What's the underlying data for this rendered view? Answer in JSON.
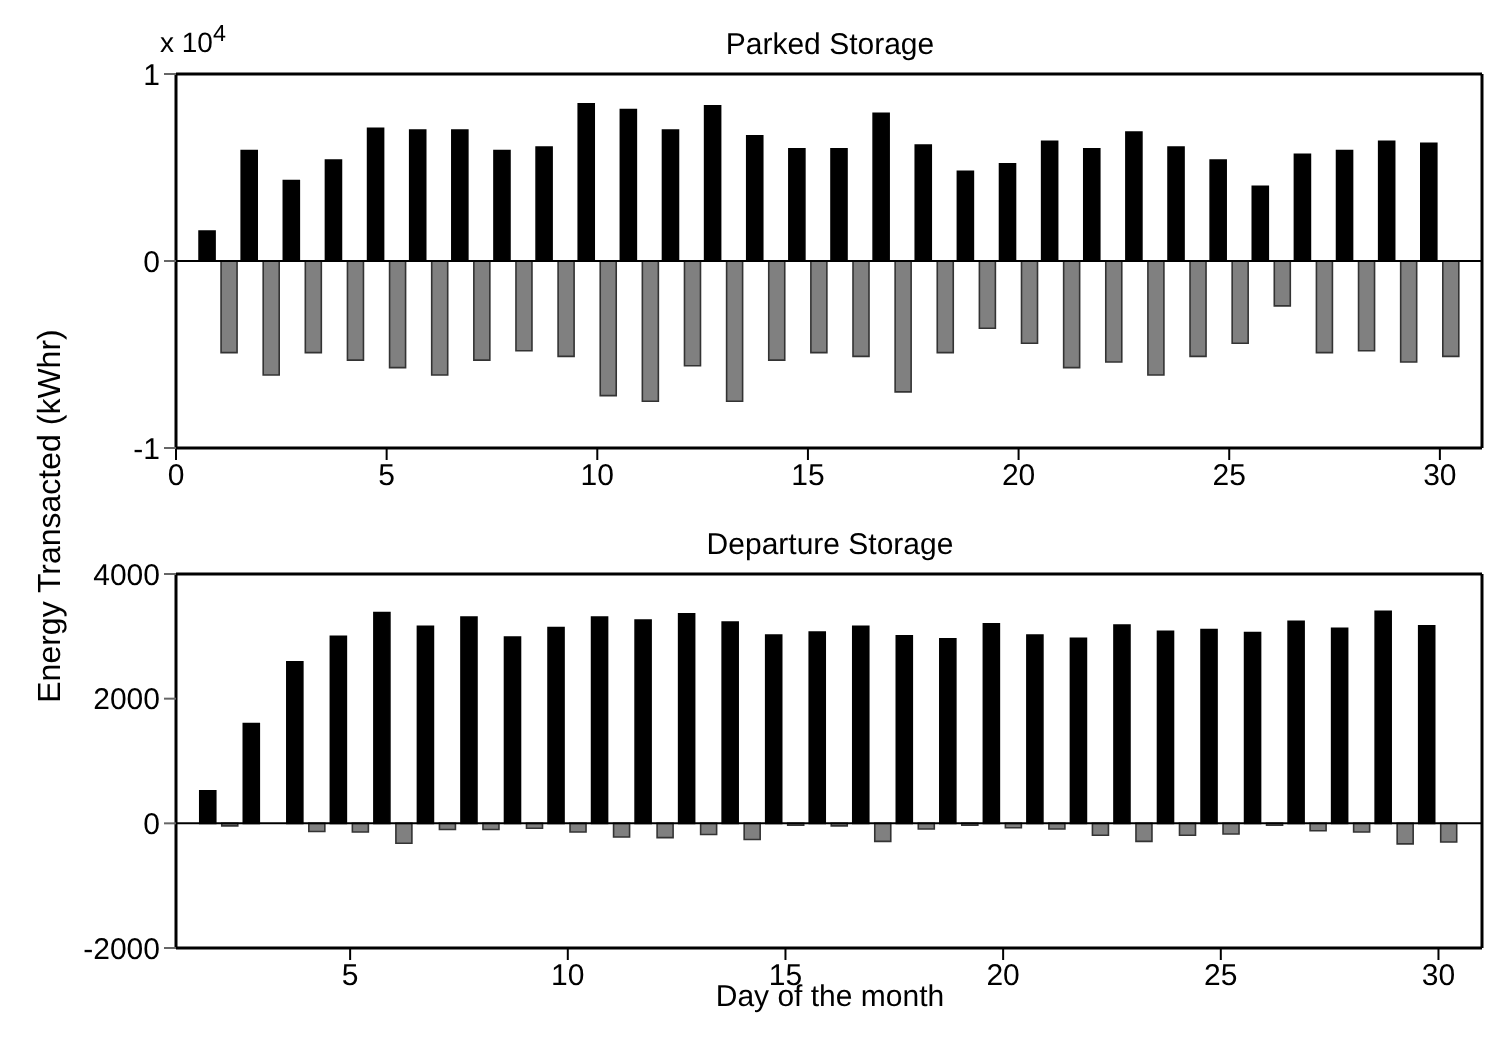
{
  "chart_data": [
    {
      "type": "bar",
      "title": "Parked Storage",
      "ylabel": "Energy Transacted (kWhr)",
      "annotations": [
        "x 10$^{4}$"
      ],
      "x": [
        1,
        2,
        3,
        4,
        5,
        6,
        7,
        8,
        9,
        10,
        11,
        12,
        13,
        14,
        15,
        16,
        17,
        18,
        19,
        20,
        21,
        22,
        23,
        24,
        25,
        26,
        27,
        28,
        29,
        30
      ],
      "series": [
        {
          "color": "#000000",
          "values": [
            0.16,
            0.59,
            0.43,
            0.54,
            0.71,
            0.7,
            0.7,
            0.59,
            0.61,
            0.84,
            0.81,
            0.7,
            0.83,
            0.67,
            0.6,
            0.6,
            0.79,
            0.62,
            0.48,
            0.52,
            0.64,
            0.6,
            0.69,
            0.61,
            0.54,
            0.4,
            0.57,
            0.59,
            0.64,
            0.63
          ]
        },
        {
          "color": "#808080",
          "values": [
            -0.49,
            -0.61,
            -0.49,
            -0.53,
            -0.57,
            -0.61,
            -0.53,
            -0.48,
            -0.51,
            -0.72,
            -0.75,
            -0.56,
            -0.75,
            -0.53,
            -0.49,
            -0.51,
            -0.7,
            -0.49,
            -0.36,
            -0.44,
            -0.57,
            -0.54,
            -0.61,
            -0.51,
            -0.44,
            -0.24,
            -0.49,
            -0.48,
            -0.54,
            -0.51
          ]
        }
      ],
      "xlim": [
        0,
        31
      ],
      "xticks": [
        0,
        5,
        10,
        15,
        20,
        25,
        30
      ],
      "ylim": [
        -1,
        1
      ],
      "yticks": [
        -1,
        0,
        1
      ]
    },
    {
      "type": "bar",
      "title": "Departure Storage",
      "xlabel": "Day of the month",
      "x": [
        2,
        3,
        4,
        5,
        6,
        7,
        8,
        9,
        10,
        11,
        12,
        13,
        14,
        15,
        16,
        17,
        18,
        19,
        20,
        21,
        22,
        23,
        24,
        25,
        26,
        27,
        28,
        29,
        30
      ],
      "series": [
        {
          "color": "#000000",
          "values": [
            520,
            1600,
            2590,
            3000,
            3380,
            3160,
            3310,
            2990,
            3140,
            3310,
            3260,
            3360,
            3230,
            3020,
            3070,
            3160,
            3010,
            2960,
            3200,
            3020,
            2970,
            3180,
            3080,
            3110,
            3060,
            3240,
            3130,
            3400,
            3170
          ]
        },
        {
          "color": "#808080",
          "values": [
            -40,
            null,
            -130,
            -140,
            -320,
            -100,
            -100,
            -80,
            -140,
            -220,
            -230,
            -180,
            -260,
            -30,
            -40,
            -290,
            -90,
            -30,
            -70,
            -90,
            -190,
            -290,
            -190,
            -170,
            -30,
            -120,
            -140,
            -330,
            -300
          ]
        }
      ],
      "xlim": [
        1,
        31
      ],
      "xticks": [
        5,
        10,
        15,
        20,
        25,
        30
      ],
      "ylim": [
        -2000,
        4000
      ],
      "yticks": [
        -2000,
        0,
        2000,
        4000
      ]
    }
  ]
}
